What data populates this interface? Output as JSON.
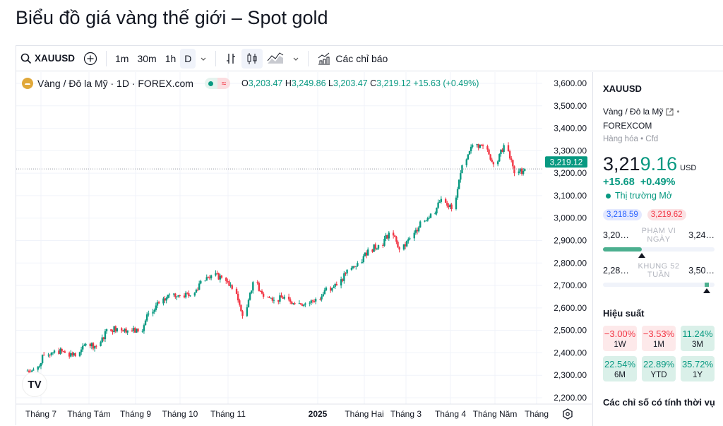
{
  "page_title": "Biểu đồ giá vàng thế giới – Spot gold",
  "toolbar": {
    "symbol": "XAUUSD",
    "intervals": [
      "1m",
      "30m",
      "1h",
      "D"
    ],
    "active_interval": "D",
    "indicators_label": "Các chỉ báo",
    "icons": [
      "search-icon",
      "plus-circle-icon",
      "chevron-down-icon",
      "bar-chart-icon",
      "candles-icon",
      "area-chart-icon",
      "chevron-down-icon",
      "indicators-icon"
    ]
  },
  "legend": {
    "name": "Vàng / Đô la Mỹ · 1D · FOREX.com",
    "o_label": "O",
    "o": "3,203.47",
    "h_label": "H",
    "h": "3,249.86",
    "l_label": "L",
    "l": "3,203.47",
    "c_label": "C",
    "c": "3,219.12",
    "change": "+15.63 (+0.49%)"
  },
  "chart_data": {
    "type": "candlestick",
    "title": "",
    "x_ticks": [
      "Tháng 7",
      "Tháng Tám",
      "Tháng 9",
      "Tháng 10",
      "Tháng 11",
      "2025",
      "Tháng Hai",
      "Tháng 3",
      "Tháng 4",
      "Tháng Năm",
      "Tháng"
    ],
    "y_ticks": [
      "3,600.00",
      "3,500.00",
      "3,400.00",
      "3,300.00",
      "3,200.00",
      "3,100.00",
      "3,000.00",
      "2,900.00",
      "2,800.00",
      "2,700.00",
      "2,600.00",
      "2,500.00",
      "2,400.00",
      "2,300.00",
      "2,200.00"
    ],
    "ylim": [
      2200,
      3600
    ],
    "grid": true,
    "last_price": 3219.12,
    "last_price_label": "3,219.12",
    "colors": {
      "up": "#089981",
      "down": "#f23645"
    },
    "weekly_close": [
      {
        "date": "2024-06-21",
        "close": 2320
      },
      {
        "date": "2024-06-28",
        "close": 2325
      },
      {
        "date": "2024-07-05",
        "close": 2390
      },
      {
        "date": "2024-07-12",
        "close": 2410
      },
      {
        "date": "2024-07-19",
        "close": 2400
      },
      {
        "date": "2024-07-26",
        "close": 2385
      },
      {
        "date": "2024-08-02",
        "close": 2440
      },
      {
        "date": "2024-08-09",
        "close": 2430
      },
      {
        "date": "2024-08-16",
        "close": 2505
      },
      {
        "date": "2024-08-23",
        "close": 2510
      },
      {
        "date": "2024-08-30",
        "close": 2500
      },
      {
        "date": "2024-09-06",
        "close": 2495
      },
      {
        "date": "2024-09-13",
        "close": 2575
      },
      {
        "date": "2024-09-20",
        "close": 2620
      },
      {
        "date": "2024-09-27",
        "close": 2660
      },
      {
        "date": "2024-10-04",
        "close": 2655
      },
      {
        "date": "2024-10-11",
        "close": 2655
      },
      {
        "date": "2024-10-18",
        "close": 2720
      },
      {
        "date": "2024-10-25",
        "close": 2745
      },
      {
        "date": "2024-11-01",
        "close": 2735
      },
      {
        "date": "2024-11-08",
        "close": 2685
      },
      {
        "date": "2024-11-15",
        "close": 2565
      },
      {
        "date": "2024-11-22",
        "close": 2715
      },
      {
        "date": "2024-11-29",
        "close": 2650
      },
      {
        "date": "2024-12-06",
        "close": 2635
      },
      {
        "date": "2024-12-13",
        "close": 2650
      },
      {
        "date": "2024-12-20",
        "close": 2620
      },
      {
        "date": "2024-12-27",
        "close": 2620
      },
      {
        "date": "2025-01-03",
        "close": 2640
      },
      {
        "date": "2025-01-10",
        "close": 2690
      },
      {
        "date": "2025-01-17",
        "close": 2700
      },
      {
        "date": "2025-01-24",
        "close": 2770
      },
      {
        "date": "2025-01-31",
        "close": 2800
      },
      {
        "date": "2025-02-07",
        "close": 2860
      },
      {
        "date": "2025-02-14",
        "close": 2880
      },
      {
        "date": "2025-02-21",
        "close": 2935
      },
      {
        "date": "2025-02-28",
        "close": 2860
      },
      {
        "date": "2025-03-07",
        "close": 2910
      },
      {
        "date": "2025-03-14",
        "close": 2985
      },
      {
        "date": "2025-03-21",
        "close": 3020
      },
      {
        "date": "2025-03-28",
        "close": 3085
      },
      {
        "date": "2025-04-04",
        "close": 3040
      },
      {
        "date": "2025-04-11",
        "close": 3235
      },
      {
        "date": "2025-04-18",
        "close": 3325
      },
      {
        "date": "2025-04-25",
        "close": 3320
      },
      {
        "date": "2025-05-02",
        "close": 3240
      },
      {
        "date": "2025-05-09",
        "close": 3325
      },
      {
        "date": "2025-05-16",
        "close": 3200
      },
      {
        "date": "2025-05-23",
        "close": 3219
      }
    ]
  },
  "side": {
    "symbol": "XAUUSD",
    "name": "Vàng / Đô la Mỹ",
    "exchange": "FOREXCOM",
    "category": "Hàng hóa",
    "type": "Cfd",
    "price_main": "3,21",
    "price_accent": "9.16",
    "currency": "USD",
    "change": "+15.68",
    "change_pct": "+0.49%",
    "status": "Thị trường Mở",
    "bid": "3,218.59",
    "ask": "3,219.62",
    "day_range": {
      "low": "3,20…",
      "label1": "PHẠM VI",
      "label2": "NGÀY",
      "high": "3,24…",
      "position": 0.35
    },
    "week52": {
      "low": "2,28…",
      "label1": "KHUNG 52",
      "label2": "TUẦN",
      "high": "3,50…",
      "position": 0.93
    },
    "perf_title": "Hiệu suất",
    "perf": [
      {
        "value": "−3.00%",
        "label": "1W",
        "dir": "neg"
      },
      {
        "value": "−3.53%",
        "label": "1M",
        "dir": "neg"
      },
      {
        "value": "11.24%",
        "label": "3M",
        "dir": "pos"
      },
      {
        "value": "22.54%",
        "label": "6M",
        "dir": "pos"
      },
      {
        "value": "22.89%",
        "label": "YTD",
        "dir": "pos"
      },
      {
        "value": "35.72%",
        "label": "1Y",
        "dir": "pos"
      }
    ],
    "seasonal_title": "Các chỉ số có tính thời vụ"
  }
}
